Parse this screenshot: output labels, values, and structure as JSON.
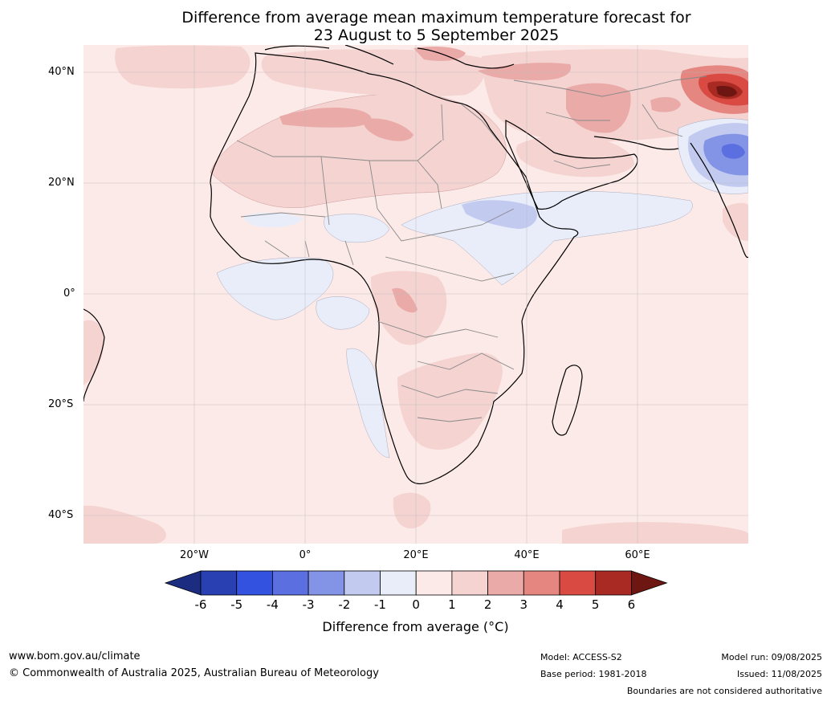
{
  "title": {
    "line1": "Difference from average mean maximum temperature forecast for",
    "line2": "23 August to 5 September 2025"
  },
  "map": {
    "latitude_labels": [
      "40°N",
      "20°N",
      "0°",
      "20°S",
      "40°S"
    ],
    "longitude_labels": [
      "20°W",
      "0°",
      "20°E",
      "40°E",
      "60°E"
    ],
    "extent": {
      "lon_min": -40,
      "lon_max": 80,
      "lat_min": -45,
      "lat_max": 45
    },
    "colors": {
      "ocean_background": "#fceae8",
      "bin_0_1": "#fceae8",
      "bin_1_2": "#f4d3d1",
      "bin_2_3": "#eaaaa8",
      "bin_3_4": "#e58680",
      "bin_4_5": "#d94b42",
      "bin_5_6": "#a82a23",
      "bin_gt6": "#6e1712",
      "bin_m1_0": "#e9edfa",
      "bin_m2_m1": "#c2caf0",
      "bin_m3_m2": "#8393e5",
      "bin_m4_m3": "#5b6fe0",
      "bin_m5_m4": "#3352df",
      "bin_m6_m5": "#2840b1",
      "bin_lt_m6": "#1c2c80"
    }
  },
  "colorbar": {
    "ticks": [
      "-6",
      "-5",
      "-4",
      "-3",
      "-2",
      "-1",
      "0",
      "1",
      "2",
      "3",
      "4",
      "5",
      "6"
    ],
    "colors": [
      "#1c2c80",
      "#2840b1",
      "#3352df",
      "#5b6fe0",
      "#8393e5",
      "#c2caf0",
      "#e9edfa",
      "#fceae8",
      "#f4d3d1",
      "#eaaaa8",
      "#e58680",
      "#d94b42",
      "#a82a23",
      "#6e1712"
    ],
    "label": "Difference from average (°C)"
  },
  "footer": {
    "website": "www.bom.gov.au/climate",
    "copyright": "© Commonwealth of Australia 2025, Australian Bureau of Meteorology",
    "model": "Model: ACCESS-S2",
    "base_period": "Base period: 1981-2018",
    "model_run": "Model run: 09/08/2025",
    "issued": "Issued: 11/08/2025",
    "disclaimer": "Boundaries are not considered authoritative"
  }
}
